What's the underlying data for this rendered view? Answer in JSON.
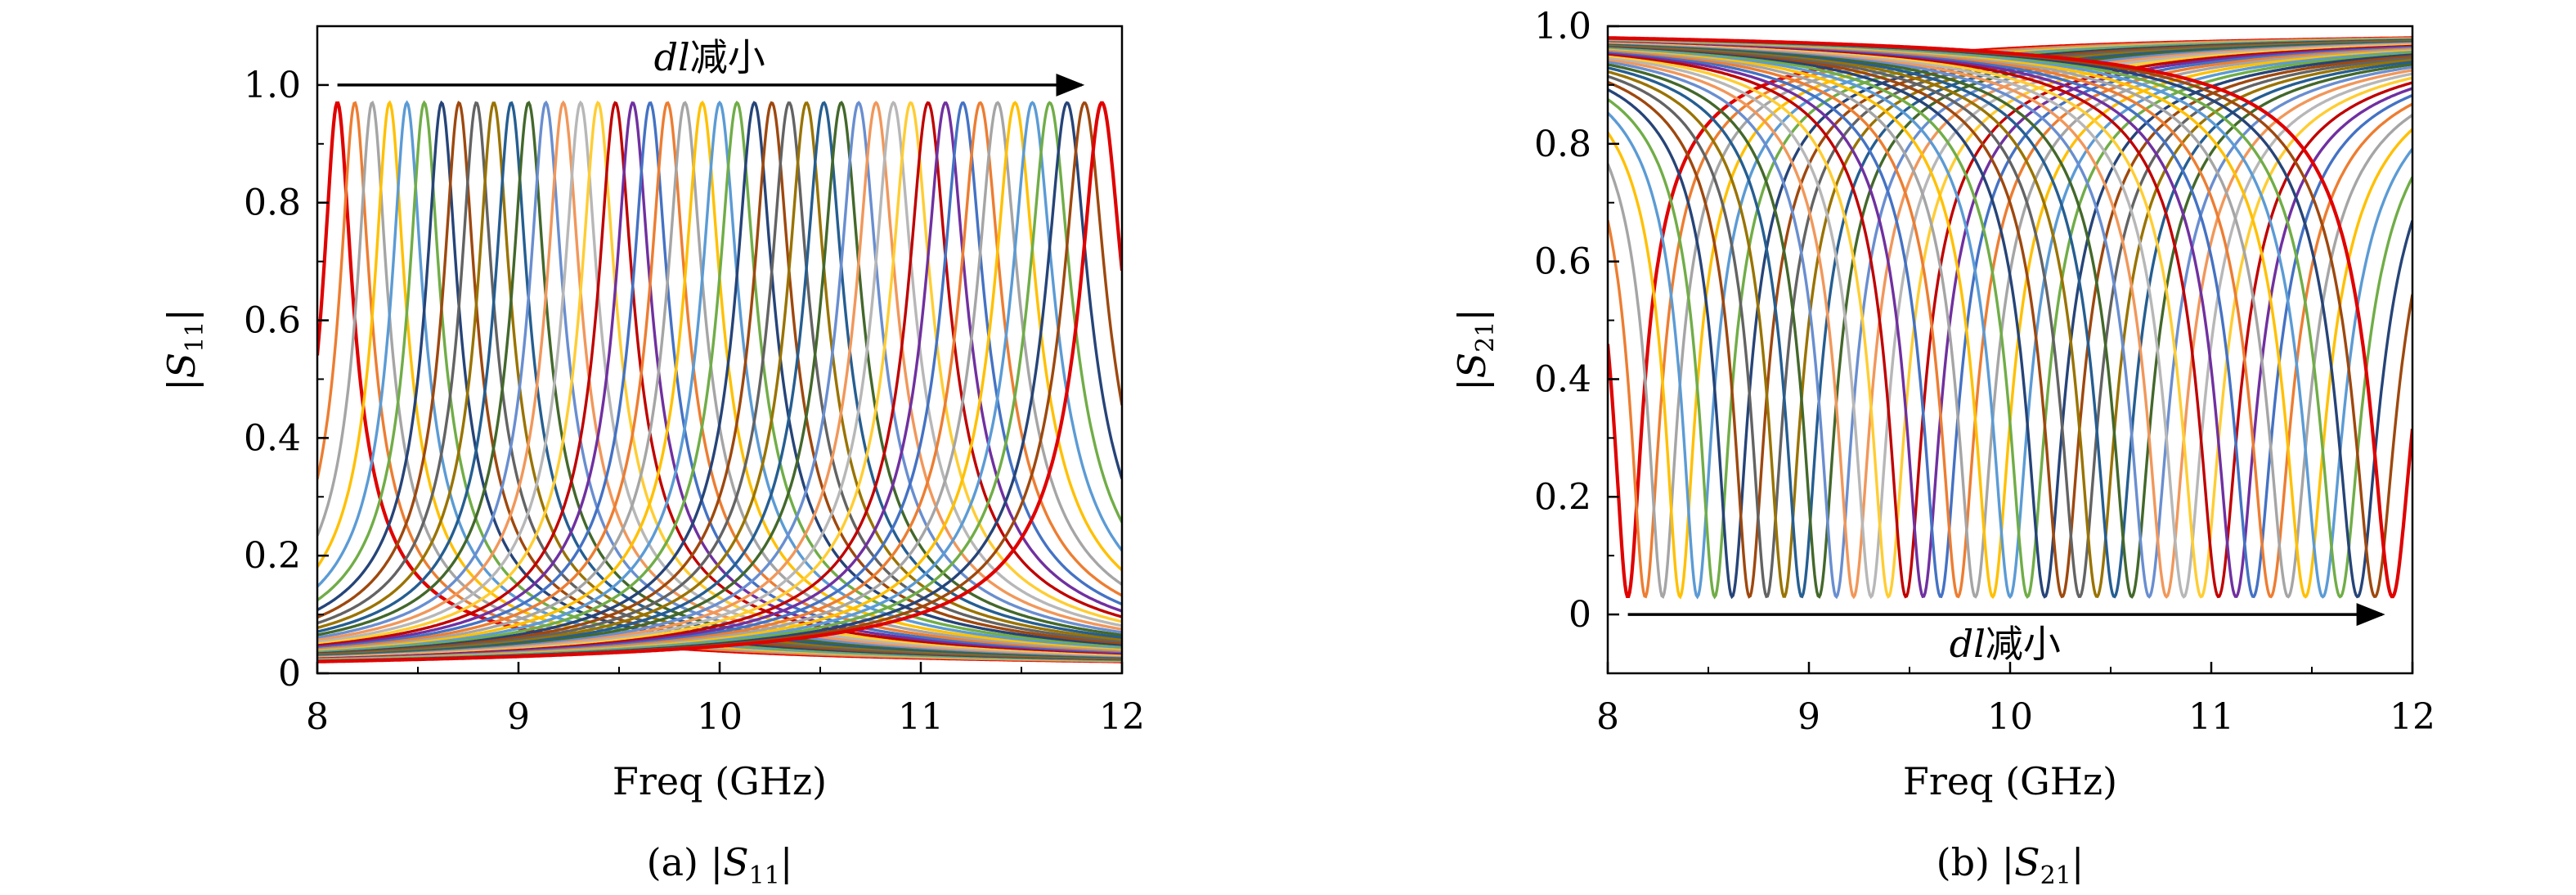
{
  "colors": [
    "#4472c4",
    "#ed7d31",
    "#a5a5a5",
    "#ffc000",
    "#5b9bd5",
    "#70ad47",
    "#264478",
    "#9e480e",
    "#636363",
    "#997300",
    "#255e91",
    "#43682b",
    "#698ed0",
    "#f1975a",
    "#b7b7b7",
    "#ffcd33",
    "#c00000",
    "#7030a0"
  ],
  "last_color": "#e00000",
  "arrow_color": "#000000",
  "chart_data": [
    {
      "type": "line",
      "panel": "a",
      "caption": "(a) |S11|",
      "caption_prefix": "(a) |",
      "caption_var": "S",
      "caption_sub": "11",
      "caption_suffix": "|",
      "xlabel": "Freq (GHz)",
      "ylabel_var": "S",
      "ylabel_sub": "11",
      "xlim": [
        8,
        12
      ],
      "ylim": [
        0,
        1.1
      ],
      "xticks": [
        8,
        9,
        10,
        11,
        12
      ],
      "xtick_labels": [
        "8",
        "9",
        "10",
        "11",
        "12"
      ],
      "yticks": [
        0,
        0.2,
        0.4,
        0.6,
        0.8,
        1.0
      ],
      "ytick_labels": [
        "0",
        "0.2",
        "0.4",
        "0.6",
        "0.8",
        "1.0"
      ],
      "annotation": {
        "text_var": "dl",
        "text_cn": "减小",
        "arrow_from": [
          8.1,
          1.0
        ],
        "arrow_to": [
          11.8,
          1.0
        ]
      },
      "peak_value": 0.97,
      "series_count": 45,
      "resonance_range_ghz": [
        8.1,
        11.9
      ],
      "grid": false
    },
    {
      "type": "line",
      "panel": "b",
      "caption": "(b) |S21|",
      "caption_prefix": "(b) |",
      "caption_var": "S",
      "caption_sub": "21",
      "caption_suffix": "|",
      "xlabel": "Freq (GHz)",
      "ylabel_var": "S",
      "ylabel_sub": "21",
      "xlim": [
        8,
        12
      ],
      "ylim": [
        -0.1,
        1.0
      ],
      "xticks": [
        8,
        9,
        10,
        11,
        12
      ],
      "xtick_labels": [
        "8",
        "9",
        "10",
        "11",
        "12"
      ],
      "yticks": [
        0,
        0.2,
        0.4,
        0.6,
        0.8,
        1.0
      ],
      "ytick_labels": [
        "0",
        "0.2",
        "0.4",
        "0.6",
        "0.8",
        "1.0"
      ],
      "annotation": {
        "text_var": "dl",
        "text_cn": "减小",
        "arrow_from": [
          8.1,
          0.0
        ],
        "arrow_to": [
          11.85,
          0.0
        ]
      },
      "dip_value": 0.03,
      "series_count": 45,
      "resonance_range_ghz": [
        8.1,
        11.9
      ],
      "grid": false
    }
  ]
}
